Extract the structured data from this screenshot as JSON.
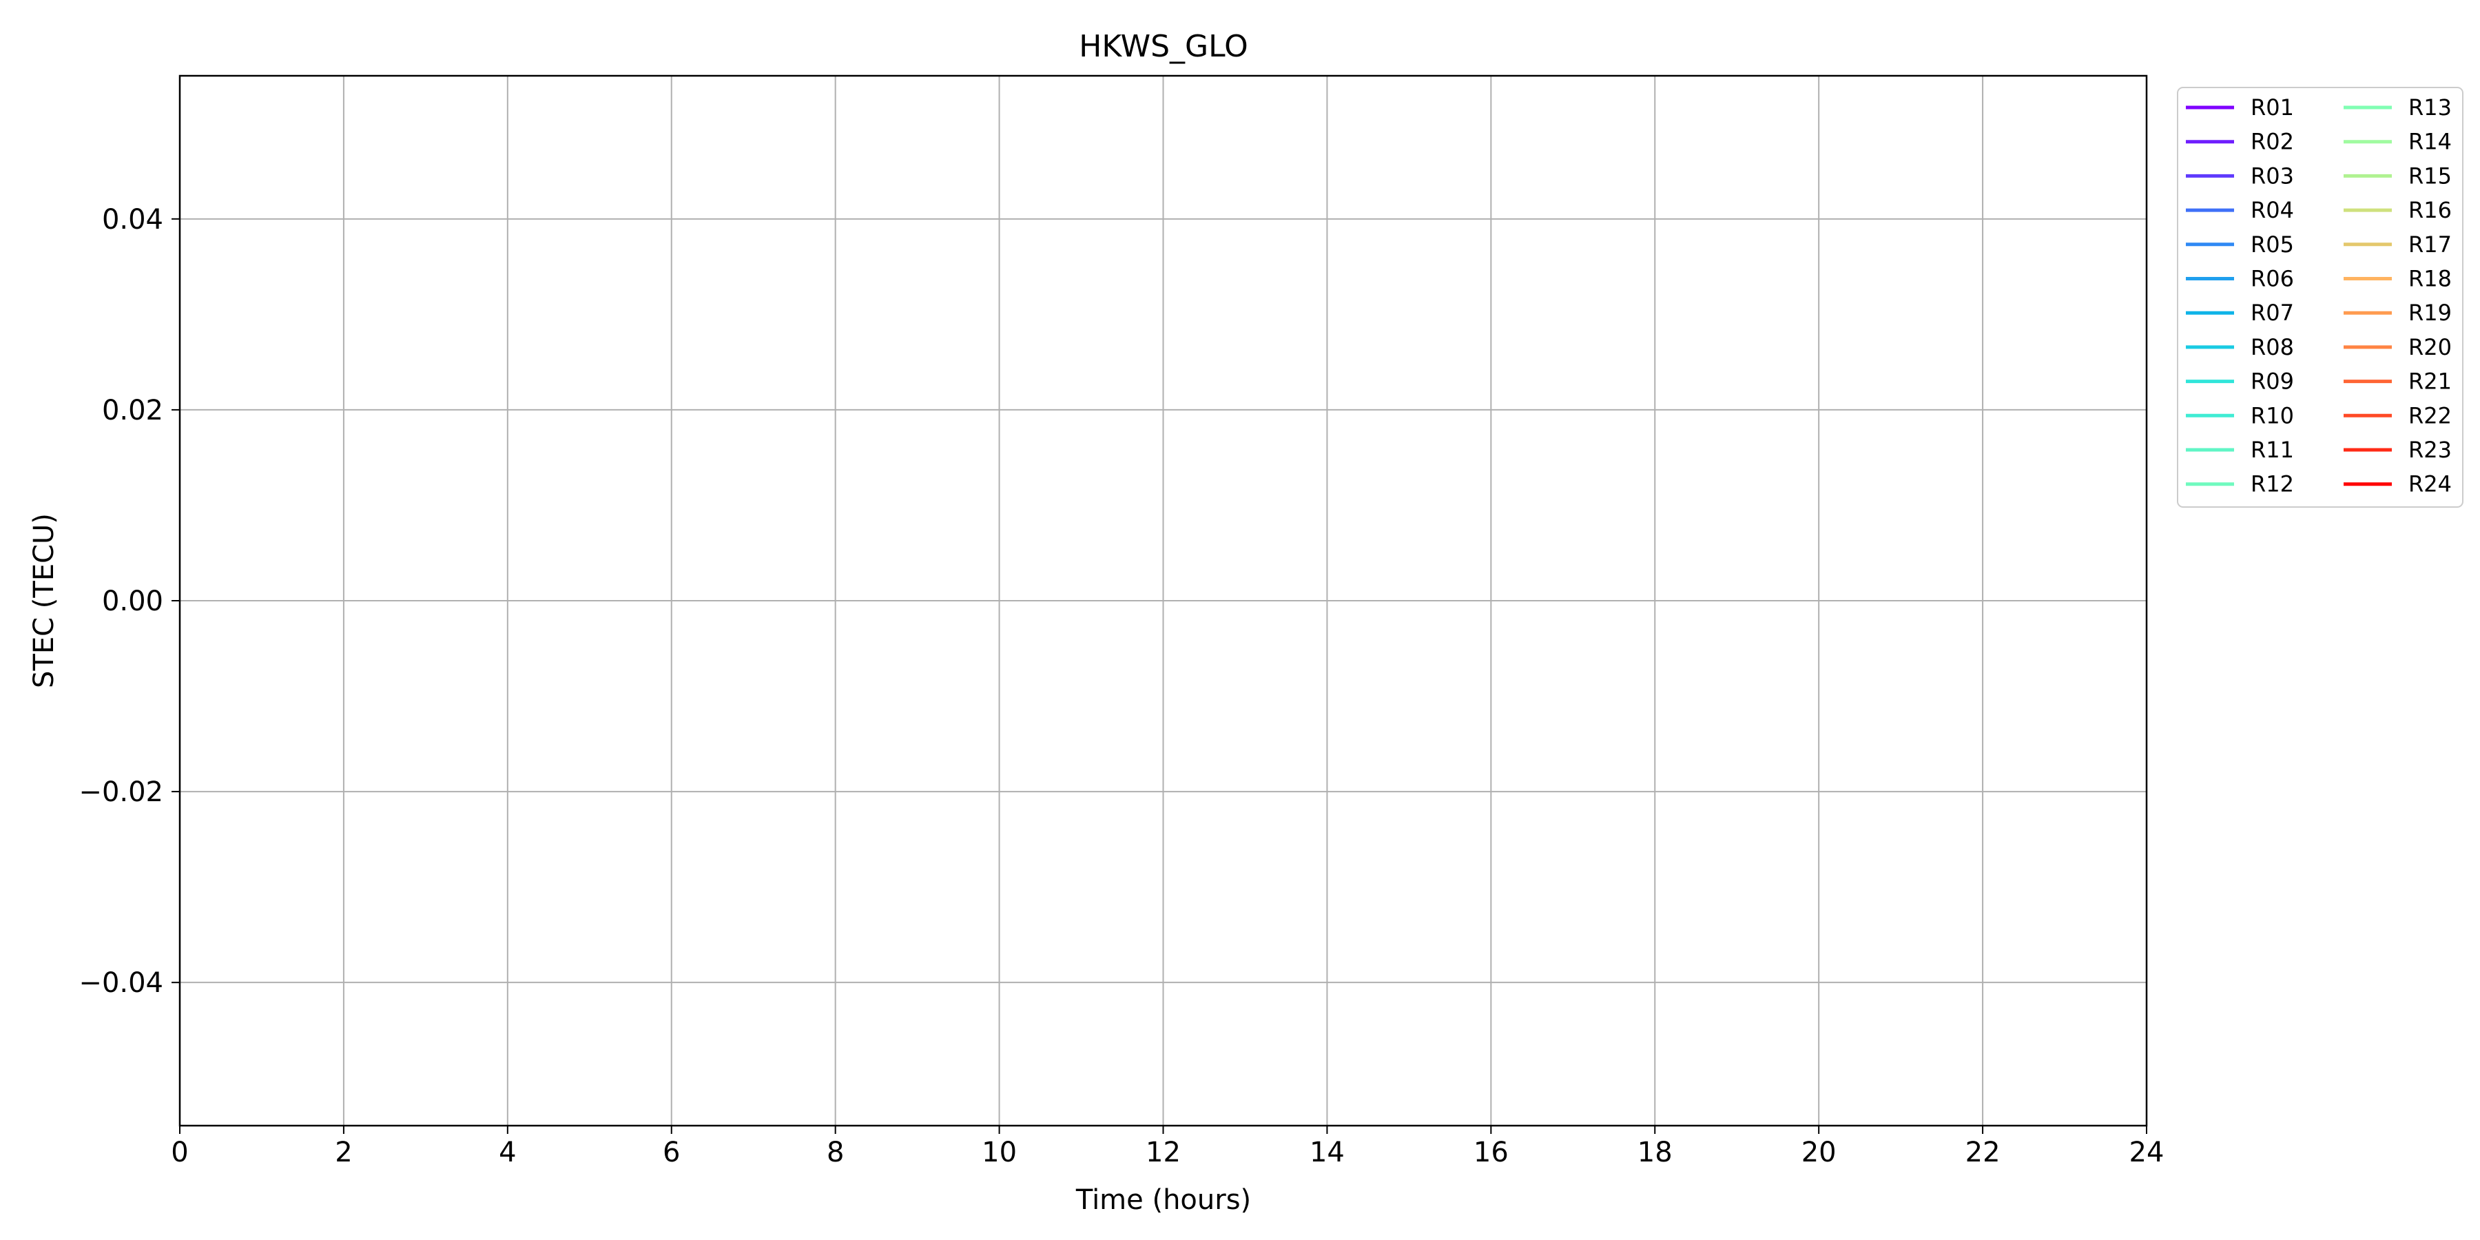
{
  "chart_data": {
    "type": "line",
    "title": "HKWS_GLO",
    "xlabel": "Time (hours)",
    "ylabel": "STEC (TECU)",
    "xlim": [
      0,
      24
    ],
    "ylim": [
      -0.055,
      0.055
    ],
    "xticks": [
      0,
      2,
      4,
      6,
      8,
      10,
      12,
      14,
      16,
      18,
      20,
      22,
      24
    ],
    "xtick_labels": [
      "0",
      "2",
      "4",
      "6",
      "8",
      "10",
      "12",
      "14",
      "16",
      "18",
      "20",
      "22",
      "24"
    ],
    "yticks": [
      0.04,
      0.02,
      0.0,
      -0.02,
      -0.04
    ],
    "ytick_labels": [
      "0.04",
      "0.02",
      "0.00",
      "−0.02",
      "−0.04"
    ],
    "grid": true,
    "legend_placement": "outside top-right",
    "legend_columns": 2,
    "series": [
      {
        "name": "R01",
        "color": "#7f00ff",
        "values": []
      },
      {
        "name": "R02",
        "color": "#6f1efe",
        "values": []
      },
      {
        "name": "R03",
        "color": "#5f3bfd",
        "values": []
      },
      {
        "name": "R04",
        "color": "#3f70f8",
        "values": []
      },
      {
        "name": "R05",
        "color": "#2f89f4",
        "values": []
      },
      {
        "name": "R06",
        "color": "#1f9fee",
        "values": []
      },
      {
        "name": "R07",
        "color": "#0fb4e8",
        "values": []
      },
      {
        "name": "R08",
        "color": "#1acbe3",
        "values": []
      },
      {
        "name": "R09",
        "color": "#30e5da",
        "values": []
      },
      {
        "name": "R10",
        "color": "#40ecd4",
        "values": []
      },
      {
        "name": "R11",
        "color": "#60f5c5",
        "values": []
      },
      {
        "name": "R12",
        "color": "#70fabf",
        "values": []
      },
      {
        "name": "R13",
        "color": "#80feb3",
        "values": []
      },
      {
        "name": "R14",
        "color": "#a0fba0",
        "values": []
      },
      {
        "name": "R15",
        "color": "#b0f291",
        "values": []
      },
      {
        "name": "R16",
        "color": "#cfe17d",
        "values": []
      },
      {
        "name": "R17",
        "color": "#e4c86c",
        "values": []
      },
      {
        "name": "R18",
        "color": "#ffb360",
        "values": []
      },
      {
        "name": "R19",
        "color": "#ff9b50",
        "values": []
      },
      {
        "name": "R20",
        "color": "#ff8443",
        "values": []
      },
      {
        "name": "R21",
        "color": "#ff6534",
        "values": []
      },
      {
        "name": "R22",
        "color": "#ff4a26",
        "values": []
      },
      {
        "name": "R23",
        "color": "#ff2a16",
        "values": []
      },
      {
        "name": "R24",
        "color": "#ff0000",
        "values": []
      }
    ]
  }
}
